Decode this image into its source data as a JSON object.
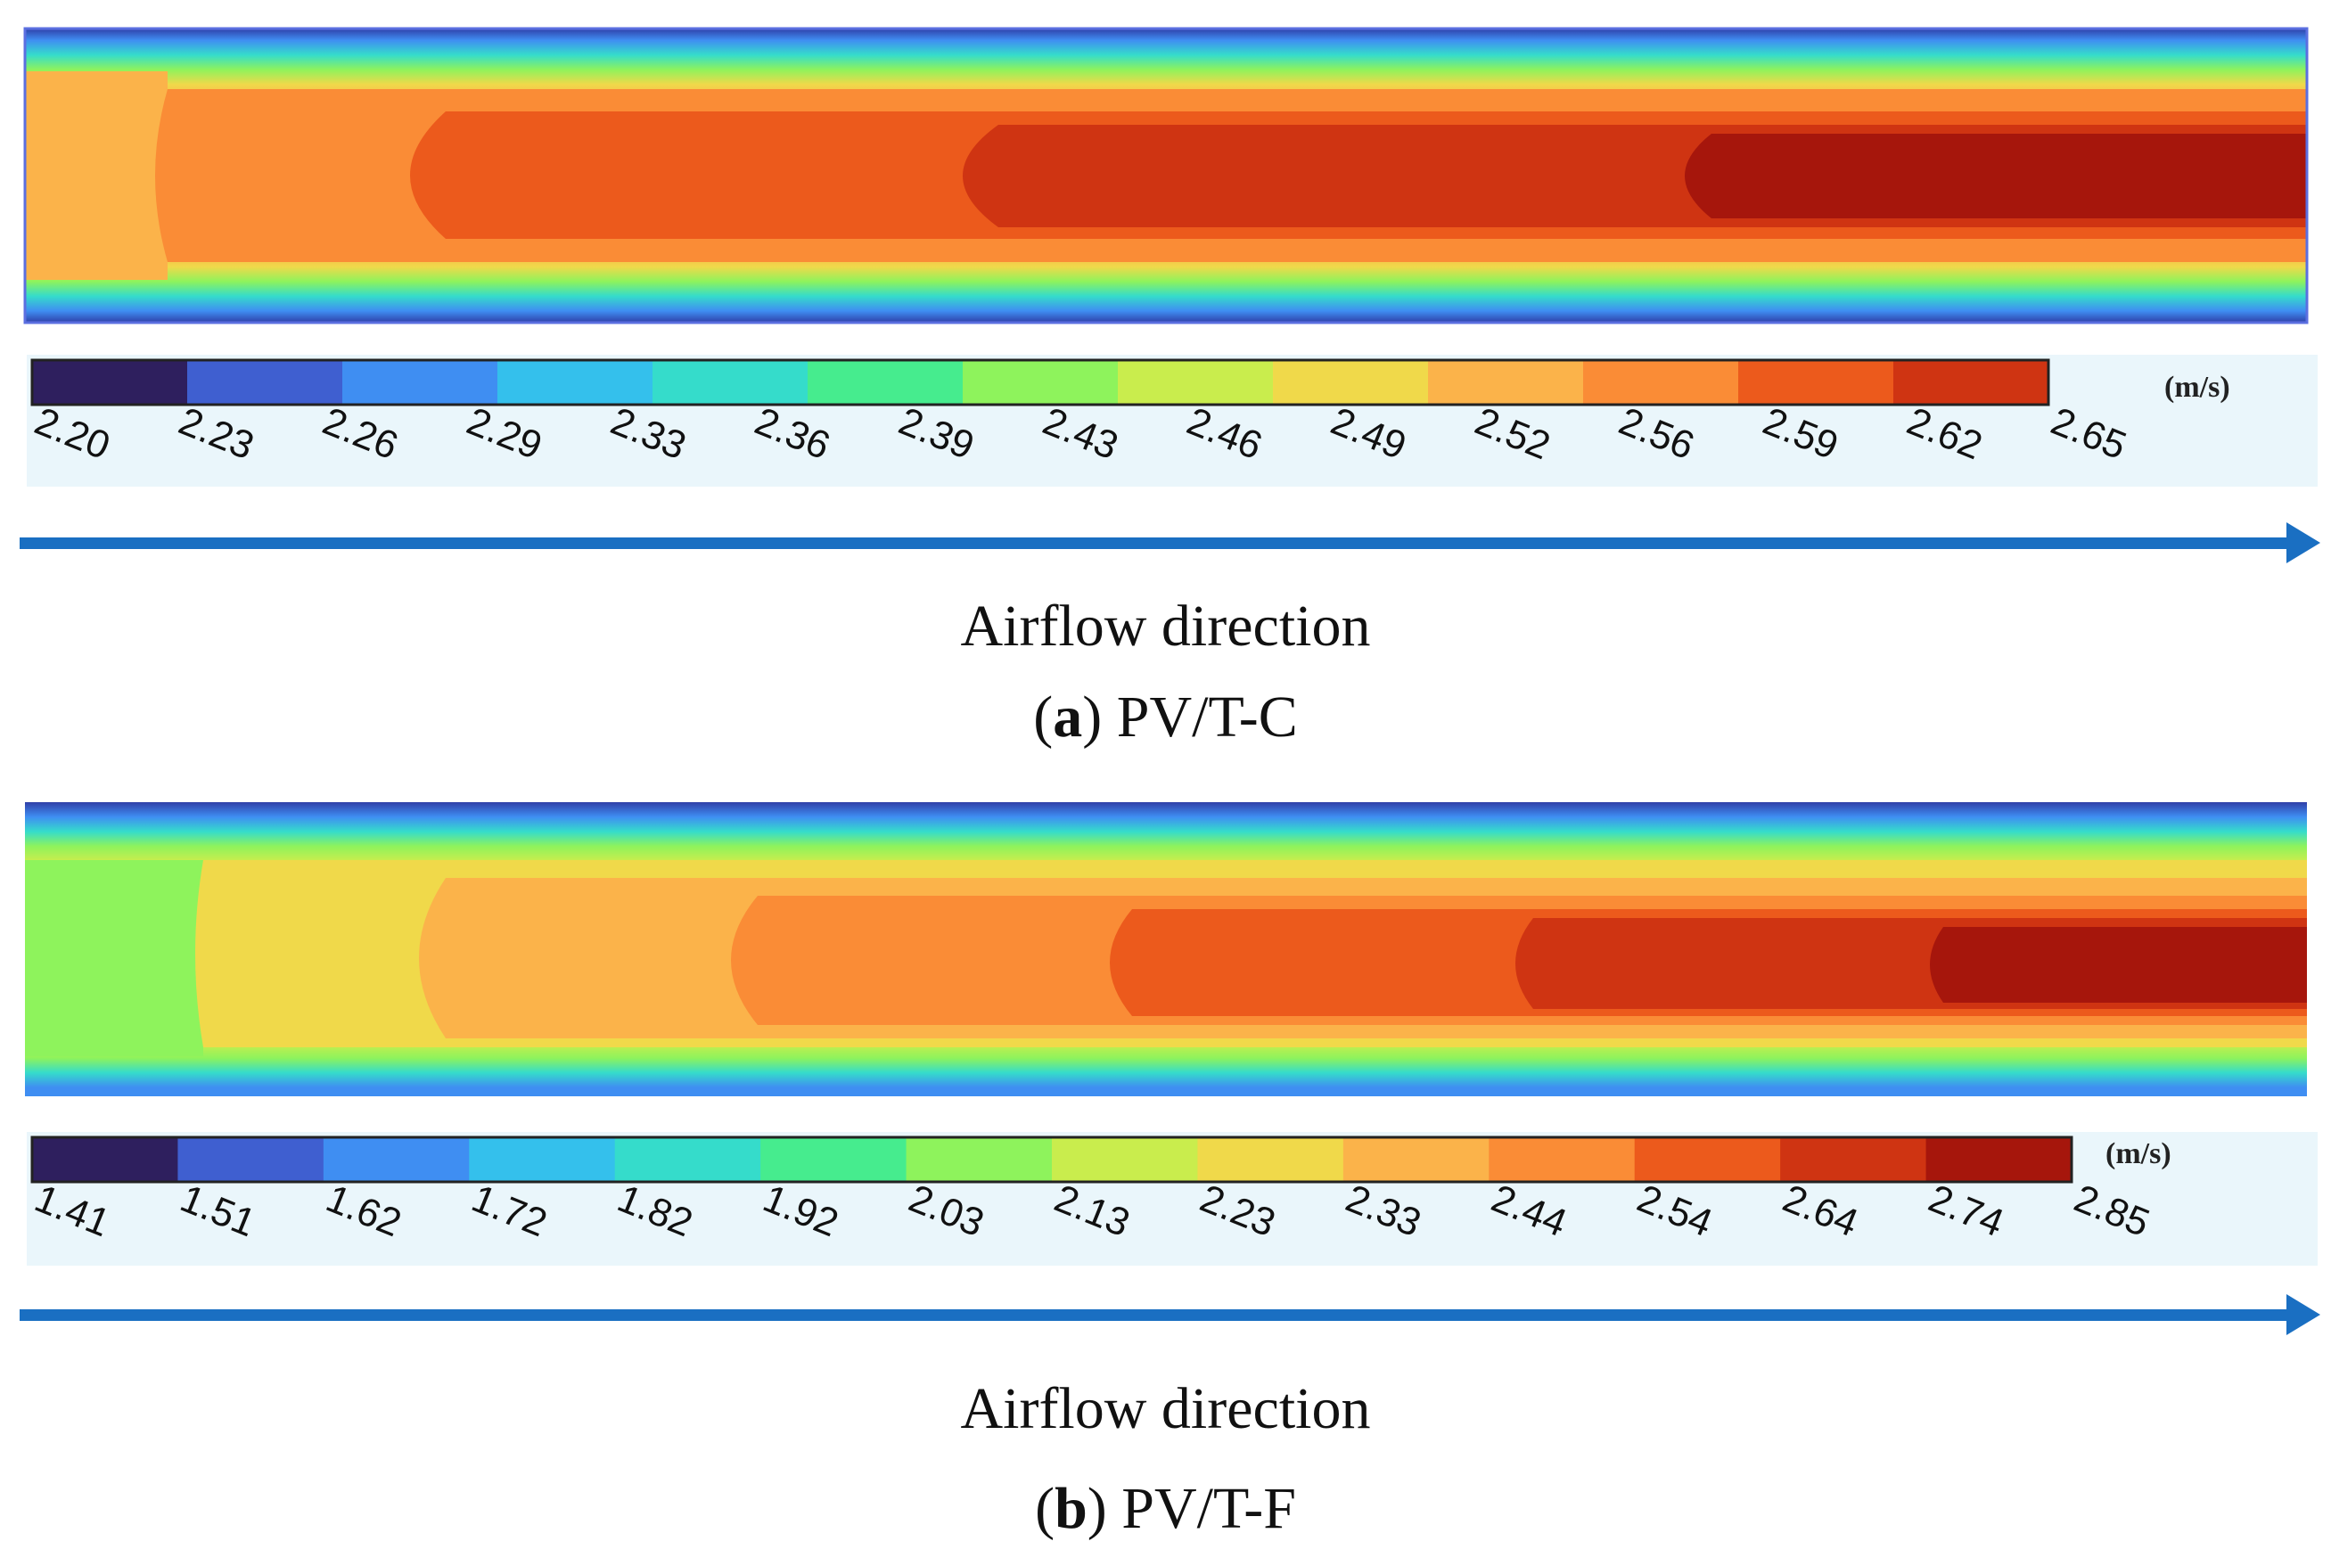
{
  "colormap": [
    "#2e1f5e",
    "#3f5fd0",
    "#3f8ef2",
    "#34c0ec",
    "#35dccb",
    "#46ec8e",
    "#8ef35c",
    "#c9ed4d",
    "#f0d94a",
    "#fbb34a",
    "#fa8c36",
    "#ec5a1c",
    "#cf3412",
    "#a6160c"
  ],
  "panel_a": {
    "unit": "(m/s)",
    "ticks": [
      "2.20",
      "2.23",
      "2.26",
      "2.29",
      "2.33",
      "2.36",
      "2.39",
      "2.43",
      "2.46",
      "2.49",
      "2.52",
      "2.56",
      "2.59",
      "2.62",
      "2.65"
    ],
    "arrow_label": "Airflow direction",
    "caption_letter": "a",
    "caption_name": "PV/T-C"
  },
  "panel_b": {
    "unit": "(m/s)",
    "ticks": [
      "1.41",
      "1.51",
      "1.62",
      "1.72",
      "1.82",
      "1.92",
      "2.03",
      "2.13",
      "2.23",
      "2.33",
      "2.44",
      "2.54",
      "2.64",
      "2.74",
      "2.85"
    ],
    "arrow_label": "Airflow direction",
    "caption_letter": "b",
    "caption_name": "PV/T-F"
  },
  "arrow_color": "#1a6fc2"
}
